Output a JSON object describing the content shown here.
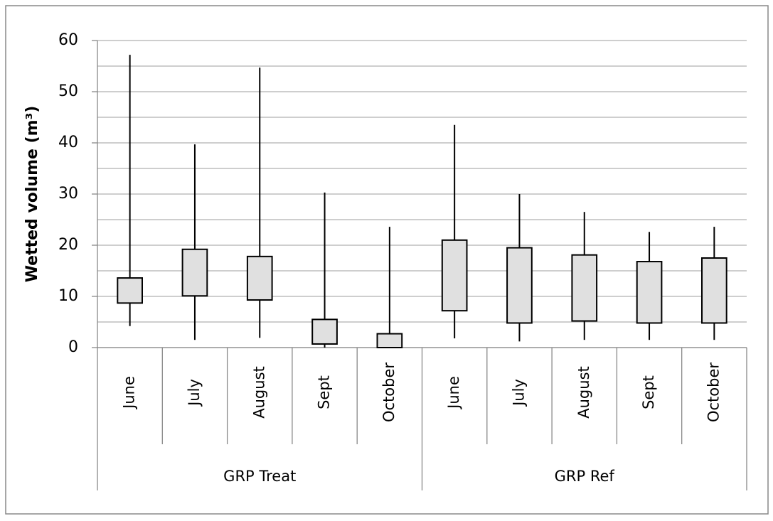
{
  "chart_data": {
    "type": "box",
    "y_label": "Wetted volume (m³)",
    "ylim": [
      0,
      60
    ],
    "yticks": [
      0,
      10,
      20,
      30,
      40,
      50,
      60
    ],
    "minor_gridlines": [
      5,
      15,
      25,
      35,
      45,
      55
    ],
    "grid": true,
    "color": "#e0e0e0",
    "groups": [
      {
        "name": "GRP Treat",
        "categories": [
          "June",
          "July",
          "August",
          "Sept",
          "October"
        ],
        "min": [
          4.2,
          1.5,
          1.9,
          0,
          0
        ],
        "q1": [
          8.7,
          10.1,
          9.3,
          0.7,
          0
        ],
        "q3": [
          13.6,
          19.2,
          17.8,
          5.5,
          2.7
        ],
        "max": [
          57.2,
          39.7,
          54.7,
          30.3,
          23.6
        ]
      },
      {
        "name": "GRP Ref",
        "categories": [
          "June",
          "July",
          "August",
          "Sept",
          "October"
        ],
        "min": [
          1.8,
          1.2,
          1.5,
          1.5,
          1.5
        ],
        "q1": [
          7.2,
          4.8,
          5.2,
          4.8,
          4.8
        ],
        "q3": [
          21,
          19.5,
          18.1,
          16.8,
          17.5
        ],
        "max": [
          43.5,
          30,
          26.5,
          22.6,
          23.6
        ]
      }
    ]
  }
}
